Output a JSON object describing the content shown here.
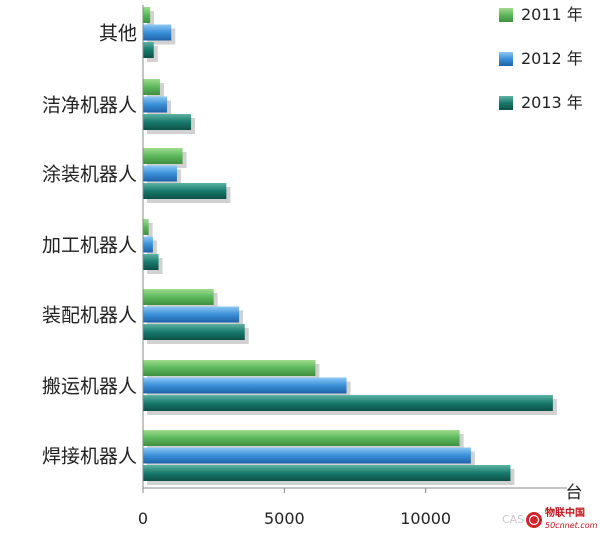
{
  "chart_data": {
    "type": "bar",
    "orientation": "horizontal",
    "categories": [
      "其他",
      "洁净机器人",
      "涂装机器人",
      "加工机器人",
      "装配机器人",
      "搬运机器人",
      "焊接机器人"
    ],
    "series": [
      {
        "name": "2011 年",
        "color": "#5cb85c",
        "values": [
          250,
          600,
          1400,
          200,
          2500,
          6100,
          11200
        ]
      },
      {
        "name": "2012 年",
        "color": "#3a8fd8",
        "values": [
          1000,
          850,
          1200,
          350,
          3400,
          7200,
          11600
        ]
      },
      {
        "name": "2013 年",
        "color": "#177a6c",
        "values": [
          380,
          1700,
          2950,
          550,
          3600,
          14500,
          13000
        ]
      }
    ],
    "x_ticks": [
      0,
      5000,
      10000
    ],
    "xlim": [
      0,
      15000
    ],
    "x_unit": "台",
    "grid": false,
    "legend_position": "top-right"
  },
  "watermark": {
    "text": "CAS",
    "logo_text": "物联中国",
    "logo_sub": "50cnnet.com"
  }
}
